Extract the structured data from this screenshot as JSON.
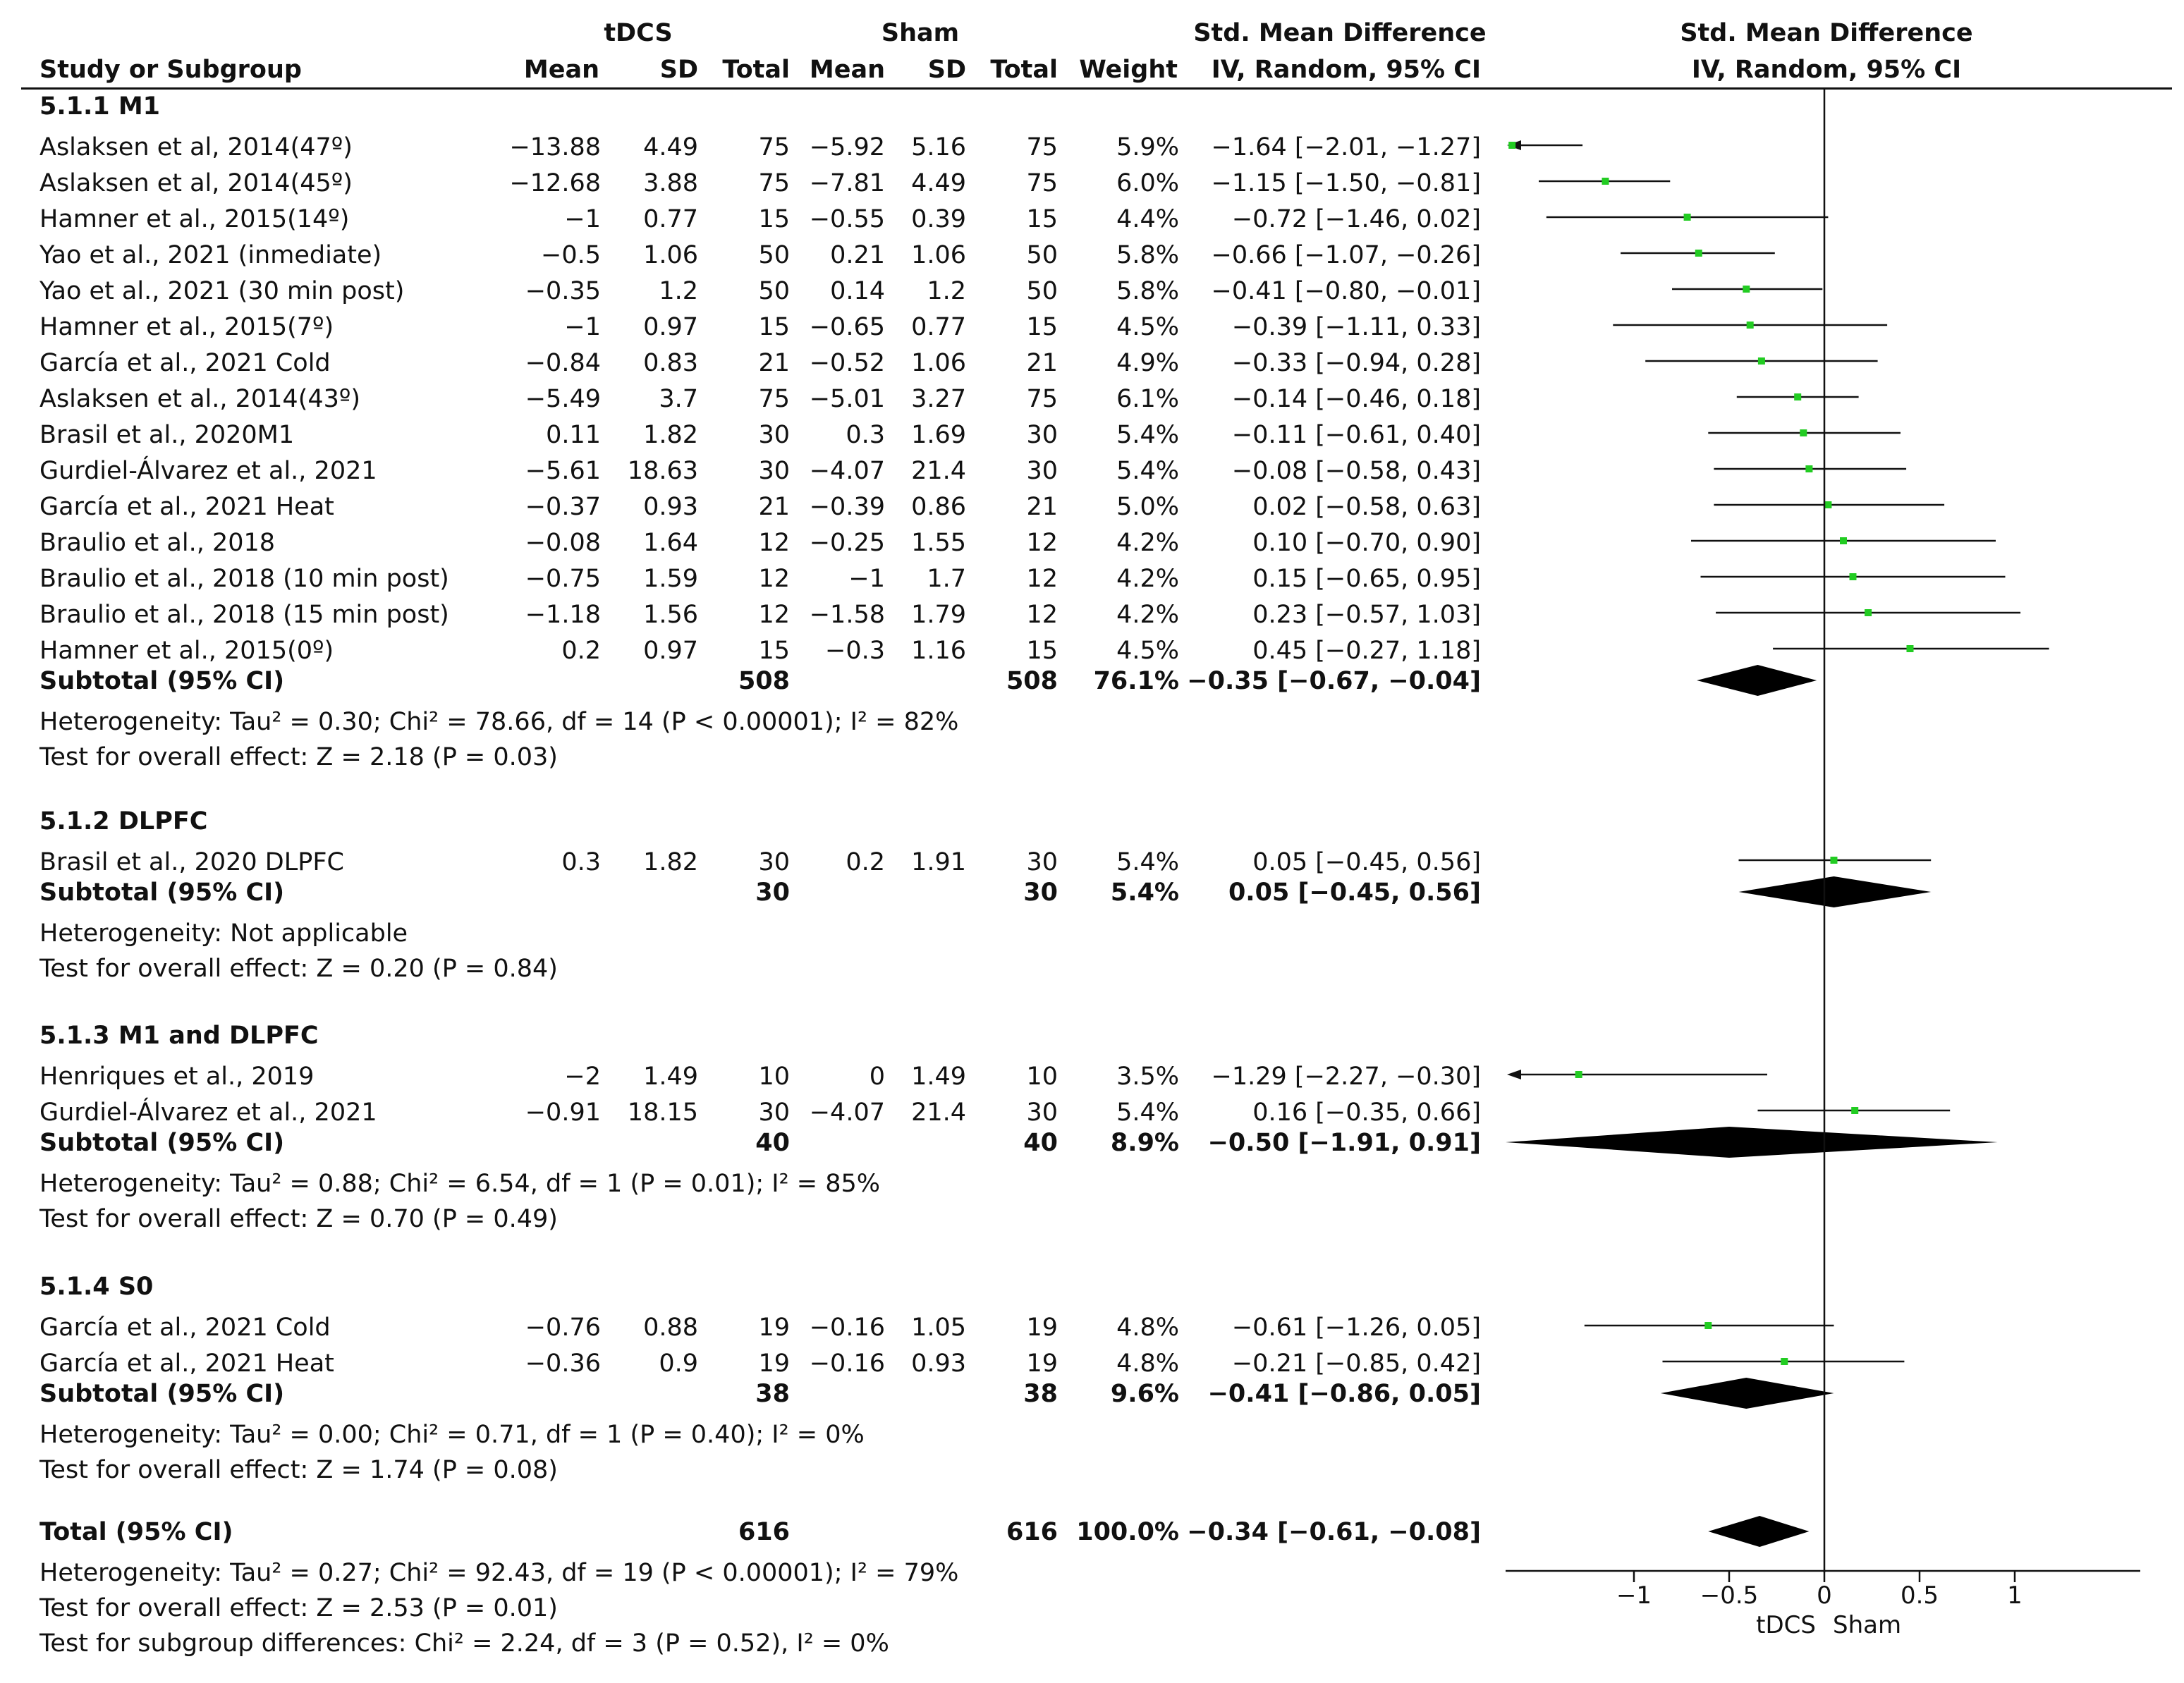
{
  "header": {
    "group1": "tDCS",
    "group2": "Sham",
    "effect_col_title": "Std. Mean Difference",
    "effect_col_method": "IV, Random, 95% CI",
    "plot_col_title": "Std. Mean Difference",
    "plot_col_method": "IV, Random, 95% CI",
    "study": "Study or Subgroup",
    "mean1": "Mean",
    "sd1": "SD",
    "total1": "Total",
    "mean2": "Mean",
    "sd2": "SD",
    "total2": "Total",
    "weight": "Weight"
  },
  "chart_data": {
    "type": "forest",
    "title": "Std. Mean Difference",
    "xlabel": "IV, Random, 95% CI",
    "xlim": [
      -1.7,
      1.7
    ],
    "xticks": [
      "-1",
      "-0.5",
      "0",
      "0.5",
      "1"
    ],
    "xtick_values": [
      -1,
      -0.5,
      0,
      0.5,
      1
    ],
    "favours_left": "tDCS",
    "favours_right": "Sham",
    "marker_color": "#22cc22",
    "subgroups": [
      {
        "name": "5.1.1 M1",
        "studies": [
          {
            "study": "Aslaksen et al, 2014(47º)",
            "m1": "-13.88",
            "sd1": "4.49",
            "n1": "75",
            "m2": "-5.92",
            "sd2": "5.16",
            "n2": "75",
            "w": "5.9%",
            "ci": "-1.64 [-2.01, -1.27]",
            "est": -1.64,
            "lo": -2.01,
            "hi": -1.27
          },
          {
            "study": "Aslaksen et al, 2014(45º)",
            "m1": "-12.68",
            "sd1": "3.88",
            "n1": "75",
            "m2": "-7.81",
            "sd2": "4.49",
            "n2": "75",
            "w": "6.0%",
            "ci": "-1.15 [-1.50, -0.81]",
            "est": -1.15,
            "lo": -1.5,
            "hi": -0.81
          },
          {
            "study": "Hamner et al., 2015(14º)",
            "m1": "-1",
            "sd1": "0.77",
            "n1": "15",
            "m2": "-0.55",
            "sd2": "0.39",
            "n2": "15",
            "w": "4.4%",
            "ci": "-0.72 [-1.46, 0.02]",
            "est": -0.72,
            "lo": -1.46,
            "hi": 0.02
          },
          {
            "study": "Yao et al., 2021 (inmediate)",
            "m1": "-0.5",
            "sd1": "1.06",
            "n1": "50",
            "m2": "0.21",
            "sd2": "1.06",
            "n2": "50",
            "w": "5.8%",
            "ci": "-0.66 [-1.07, -0.26]",
            "est": -0.66,
            "lo": -1.07,
            "hi": -0.26
          },
          {
            "study": "Yao et al., 2021 (30 min post)",
            "m1": "-0.35",
            "sd1": "1.2",
            "n1": "50",
            "m2": "0.14",
            "sd2": "1.2",
            "n2": "50",
            "w": "5.8%",
            "ci": "-0.41 [-0.80, -0.01]",
            "est": -0.41,
            "lo": -0.8,
            "hi": -0.01
          },
          {
            "study": "Hamner et al., 2015(7º)",
            "m1": "-1",
            "sd1": "0.97",
            "n1": "15",
            "m2": "-0.65",
            "sd2": "0.77",
            "n2": "15",
            "w": "4.5%",
            "ci": "-0.39 [-1.11, 0.33]",
            "est": -0.39,
            "lo": -1.11,
            "hi": 0.33
          },
          {
            "study": "García et al., 2021 Cold",
            "m1": "-0.84",
            "sd1": "0.83",
            "n1": "21",
            "m2": "-0.52",
            "sd2": "1.06",
            "n2": "21",
            "w": "4.9%",
            "ci": "-0.33 [-0.94, 0.28]",
            "est": -0.33,
            "lo": -0.94,
            "hi": 0.28
          },
          {
            "study": "Aslaksen et al., 2014(43º)",
            "m1": "-5.49",
            "sd1": "3.7",
            "n1": "75",
            "m2": "-5.01",
            "sd2": "3.27",
            "n2": "75",
            "w": "6.1%",
            "ci": "-0.14 [-0.46, 0.18]",
            "est": -0.14,
            "lo": -0.46,
            "hi": 0.18
          },
          {
            "study": "Brasil et al., 2020M1",
            "m1": "0.11",
            "sd1": "1.82",
            "n1": "30",
            "m2": "0.3",
            "sd2": "1.69",
            "n2": "30",
            "w": "5.4%",
            "ci": "-0.11 [-0.61, 0.40]",
            "est": -0.11,
            "lo": -0.61,
            "hi": 0.4
          },
          {
            "study": "Gurdiel-Álvarez et al., 2021",
            "m1": "-5.61",
            "sd1": "18.63",
            "n1": "30",
            "m2": "-4.07",
            "sd2": "21.4",
            "n2": "30",
            "w": "5.4%",
            "ci": "-0.08 [-0.58, 0.43]",
            "est": -0.08,
            "lo": -0.58,
            "hi": 0.43
          },
          {
            "study": "García et al., 2021 Heat",
            "m1": "-0.37",
            "sd1": "0.93",
            "n1": "21",
            "m2": "-0.39",
            "sd2": "0.86",
            "n2": "21",
            "w": "5.0%",
            "ci": "0.02 [-0.58, 0.63]",
            "est": 0.02,
            "lo": -0.58,
            "hi": 0.63
          },
          {
            "study": "Braulio et al., 2018",
            "m1": "-0.08",
            "sd1": "1.64",
            "n1": "12",
            "m2": "-0.25",
            "sd2": "1.55",
            "n2": "12",
            "w": "4.2%",
            "ci": "0.10 [-0.70, 0.90]",
            "est": 0.1,
            "lo": -0.7,
            "hi": 0.9
          },
          {
            "study": "Braulio et al., 2018 (10 min post)",
            "m1": "-0.75",
            "sd1": "1.59",
            "n1": "12",
            "m2": "-1",
            "sd2": "1.7",
            "n2": "12",
            "w": "4.2%",
            "ci": "0.15 [-0.65, 0.95]",
            "est": 0.15,
            "lo": -0.65,
            "hi": 0.95
          },
          {
            "study": "Braulio et al., 2018 (15 min post)",
            "m1": "-1.18",
            "sd1": "1.56",
            "n1": "12",
            "m2": "-1.58",
            "sd2": "1.79",
            "n2": "12",
            "w": "4.2%",
            "ci": "0.23 [-0.57, 1.03]",
            "est": 0.23,
            "lo": -0.57,
            "hi": 1.03
          },
          {
            "study": "Hamner et al., 2015(0º)",
            "m1": "0.2",
            "sd1": "0.97",
            "n1": "15",
            "m2": "-0.3",
            "sd2": "1.16",
            "n2": "15",
            "w": "4.5%",
            "ci": "0.45 [-0.27, 1.18]",
            "est": 0.45,
            "lo": -0.27,
            "hi": 1.18
          }
        ],
        "subtotal": {
          "label": "Subtotal (95% CI)",
          "n1": "508",
          "n2": "508",
          "w": "76.1%",
          "ci": "-0.35 [-0.67, -0.04]",
          "est": -0.35,
          "lo": -0.67,
          "hi": -0.04
        },
        "heterogeneity": "Heterogeneity: Tau² = 0.30; Chi² = 78.66, df = 14 (P < 0.00001); I² = 82%",
        "overall": "Test for overall effect: Z = 2.18 (P = 0.03)"
      },
      {
        "name": "5.1.2 DLPFC",
        "studies": [
          {
            "study": "Brasil et al., 2020 DLPFC",
            "m1": "0.3",
            "sd1": "1.82",
            "n1": "30",
            "m2": "0.2",
            "sd2": "1.91",
            "n2": "30",
            "w": "5.4%",
            "ci": "0.05 [-0.45, 0.56]",
            "est": 0.05,
            "lo": -0.45,
            "hi": 0.56
          }
        ],
        "subtotal": {
          "label": "Subtotal (95% CI)",
          "n1": "30",
          "n2": "30",
          "w": "5.4%",
          "ci": "0.05 [-0.45, 0.56]",
          "est": 0.05,
          "lo": -0.45,
          "hi": 0.56
        },
        "heterogeneity": "Heterogeneity: Not applicable",
        "overall": "Test for overall effect: Z = 0.20 (P = 0.84)"
      },
      {
        "name": "5.1.3 M1 and DLPFC",
        "studies": [
          {
            "study": "Henriques et al., 2019",
            "m1": "-2",
            "sd1": "1.49",
            "n1": "10",
            "m2": "0",
            "sd2": "1.49",
            "n2": "10",
            "w": "3.5%",
            "ci": "-1.29 [-2.27, -0.30]",
            "est": -1.29,
            "lo": -2.27,
            "hi": -0.3
          },
          {
            "study": "Gurdiel-Álvarez et al., 2021",
            "m1": "-0.91",
            "sd1": "18.15",
            "n1": "30",
            "m2": "-4.07",
            "sd2": "21.4",
            "n2": "30",
            "w": "5.4%",
            "ci": "0.16 [-0.35, 0.66]",
            "est": 0.16,
            "lo": -0.35,
            "hi": 0.66
          }
        ],
        "subtotal": {
          "label": "Subtotal (95% CI)",
          "n1": "40",
          "n2": "40",
          "w": "8.9%",
          "ci": "-0.50 [-1.91, 0.91]",
          "est": -0.5,
          "lo": -1.91,
          "hi": 0.91
        },
        "heterogeneity": "Heterogeneity: Tau² = 0.88; Chi² = 6.54, df = 1 (P = 0.01); I² = 85%",
        "overall": "Test for overall effect: Z = 0.70 (P = 0.49)"
      },
      {
        "name": "5.1.4 S0",
        "studies": [
          {
            "study": "García et al., 2021 Cold",
            "m1": "-0.76",
            "sd1": "0.88",
            "n1": "19",
            "m2": "-0.16",
            "sd2": "1.05",
            "n2": "19",
            "w": "4.8%",
            "ci": "-0.61 [-1.26, 0.05]",
            "est": -0.61,
            "lo": -1.26,
            "hi": 0.05
          },
          {
            "study": "García et al., 2021 Heat",
            "m1": "-0.36",
            "sd1": "0.9",
            "n1": "19",
            "m2": "-0.16",
            "sd2": "0.93",
            "n2": "19",
            "w": "4.8%",
            "ci": "-0.21 [-0.85, 0.42]",
            "est": -0.21,
            "lo": -0.85,
            "hi": 0.42
          }
        ],
        "subtotal": {
          "label": "Subtotal (95% CI)",
          "n1": "38",
          "n2": "38",
          "w": "9.6%",
          "ci": "-0.41 [-0.86, 0.05]",
          "est": -0.41,
          "lo": -0.86,
          "hi": 0.05
        },
        "heterogeneity": "Heterogeneity: Tau² = 0.00; Chi² = 0.71, df = 1 (P = 0.40); I² = 0%",
        "overall": "Test for overall effect: Z = 1.74 (P = 0.08)"
      }
    ],
    "total": {
      "label": "Total (95% CI)",
      "n1": "616",
      "n2": "616",
      "w": "100.0%",
      "ci": "-0.34 [-0.61, -0.08]",
      "est": -0.34,
      "lo": -0.61,
      "hi": -0.08
    },
    "total_heterogeneity": "Heterogeneity: Tau² = 0.27; Chi² = 92.43, df = 19 (P < 0.00001); I² = 79%",
    "total_overall": "Test for overall effect: Z = 2.53 (P = 0.01)",
    "subgroup_differences": "Test for subgroup differences: Chi² = 2.24, df = 3 (P = 0.52), I² = 0%"
  }
}
